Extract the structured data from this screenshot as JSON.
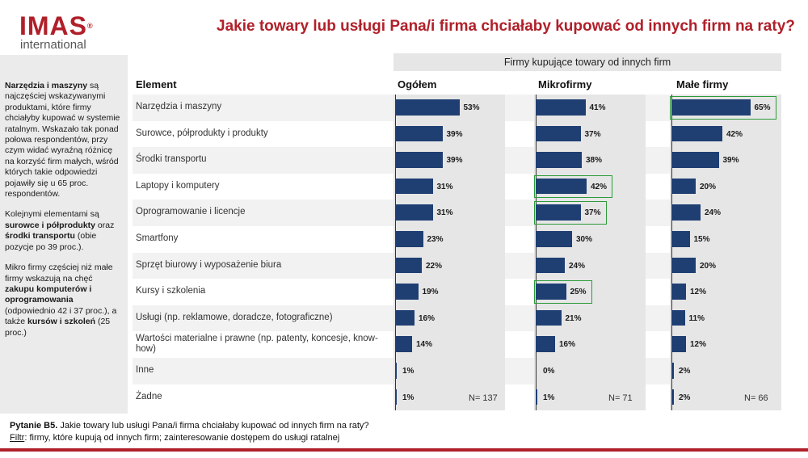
{
  "logo": {
    "name": "IMAS",
    "registered": "®",
    "sub": "international"
  },
  "title": "Jakie towary lub usługi Pana/i firma chciałaby kupować od innych firm na raty?",
  "sidebar": {
    "paragraphs": [
      [
        {
          "t": "Narzędzia i maszyny",
          "b": true
        },
        {
          "t": " są najczęściej wskazywanymi produktami, które firmy chciałyby kupować w systemie ratalnym. Wskazało tak ponad połowa respondentów, przy czym widać wyraźną różnicę na korzyść firm małych, wśród których takie odpowiedzi pojawiły się u 65 proc. respondentów.",
          "b": false
        }
      ],
      [
        {
          "t": "Kolejnymi elementami są ",
          "b": false
        },
        {
          "t": "surowce i półprodukty",
          "b": true
        },
        {
          "t": " oraz ",
          "b": false
        },
        {
          "t": "środki transportu",
          "b": true
        },
        {
          "t": " (obie pozycje po 39 proc.).",
          "b": false
        }
      ],
      [
        {
          "t": "Mikro firmy częściej niż małe firmy wskazują na chęć ",
          "b": false
        },
        {
          "t": "zakupu komputerów i oprogramowania",
          "b": true
        },
        {
          "t": " (odpowiednio 42 i 37 proc.), a także ",
          "b": false
        },
        {
          "t": "kursów i szkoleń",
          "b": true
        },
        {
          "t": " (25 proc.)",
          "b": false
        }
      ]
    ]
  },
  "footer": {
    "question_label": "Pytanie B5.",
    "question_text": " Jakie towary lub usługi Pana/i firma chciałaby kupować od innych firm na raty?",
    "filter_label": "Filtr",
    "filter_text": ": firmy, które kupują od innych firm; zainteresowanie dostępem do usługi ratalnej"
  },
  "chart_data": {
    "type": "bar",
    "orientation": "horizontal",
    "group_label": "Firmy kupujące towary od innych firm",
    "category_header": "Element",
    "categories": [
      "Narzędzia i maszyny",
      "Surowce, półprodukty i produkty",
      "Środki transportu",
      "Laptopy i komputery",
      "Oprogramowanie i licencje",
      "Smartfony",
      "Sprzęt biurowy i wyposażenie biura",
      "Kursy i szkolenia",
      "Usługi (np. reklamowe, doradcze, fotograficzne)",
      "Wartości materialne i prawne (np. patenty, koncesje, know-how)",
      "Inne",
      "Żadne"
    ],
    "series": [
      {
        "name": "Ogółem",
        "values": [
          53,
          39,
          39,
          31,
          31,
          23,
          22,
          19,
          16,
          14,
          1,
          1
        ],
        "n_label": "N= 137",
        "highlight": []
      },
      {
        "name": "Mikrofirmy",
        "values": [
          41,
          37,
          38,
          42,
          37,
          30,
          24,
          25,
          21,
          16,
          0,
          1
        ],
        "n_label": "N= 71",
        "highlight": [
          3,
          4,
          7
        ]
      },
      {
        "name": "Małe firmy",
        "values": [
          65,
          42,
          39,
          20,
          24,
          15,
          20,
          12,
          11,
          12,
          2,
          2
        ],
        "n_label": "N= 66",
        "highlight": [
          0
        ]
      }
    ],
    "value_suffix": "%",
    "xlim": [
      0,
      100
    ],
    "bar_color": "#1f3f73",
    "highlight_color": "#2d9a3a",
    "title_color": "#b0202a"
  }
}
